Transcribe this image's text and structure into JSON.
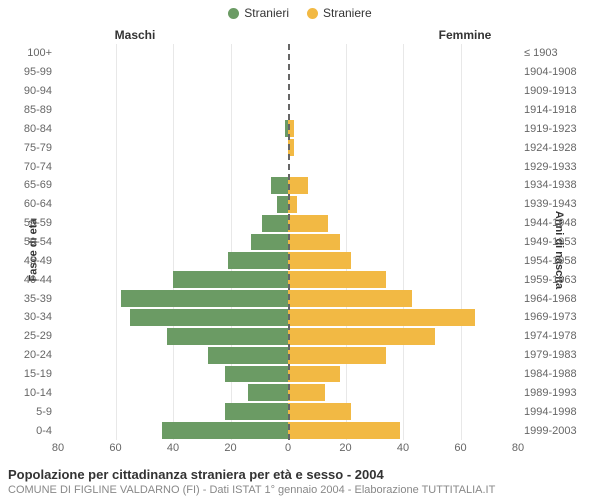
{
  "legend": {
    "male": "Stranieri",
    "female": "Straniere"
  },
  "headers": {
    "left": "Maschi",
    "right": "Femmine"
  },
  "axis": {
    "left_title": "Fasce di età",
    "right_title": "Anni di nascita"
  },
  "colors": {
    "male": "#6b9b64",
    "female": "#f2b944",
    "grid": "#e8e8e8",
    "center": "#666666",
    "text": "#666666",
    "bg": "#ffffff"
  },
  "chart": {
    "type": "population-pyramid",
    "xmax": 80,
    "xtick_step": 20,
    "xticks_left": [
      80,
      60,
      40,
      20,
      0
    ],
    "xticks_right": [
      0,
      20,
      40,
      60,
      80
    ],
    "bar_height_ratio": 0.9,
    "rows": [
      {
        "age": "100+",
        "birth": "≤ 1903",
        "m": 0,
        "f": 0
      },
      {
        "age": "95-99",
        "birth": "1904-1908",
        "m": 0,
        "f": 0
      },
      {
        "age": "90-94",
        "birth": "1909-1913",
        "m": 0,
        "f": 0
      },
      {
        "age": "85-89",
        "birth": "1914-1918",
        "m": 0,
        "f": 0
      },
      {
        "age": "80-84",
        "birth": "1919-1923",
        "m": 1,
        "f": 2
      },
      {
        "age": "75-79",
        "birth": "1924-1928",
        "m": 0,
        "f": 2
      },
      {
        "age": "70-74",
        "birth": "1929-1933",
        "m": 0,
        "f": 0
      },
      {
        "age": "65-69",
        "birth": "1934-1938",
        "m": 6,
        "f": 7
      },
      {
        "age": "60-64",
        "birth": "1939-1943",
        "m": 4,
        "f": 3
      },
      {
        "age": "55-59",
        "birth": "1944-1948",
        "m": 9,
        "f": 14
      },
      {
        "age": "50-54",
        "birth": "1949-1953",
        "m": 13,
        "f": 18
      },
      {
        "age": "45-49",
        "birth": "1954-1958",
        "m": 21,
        "f": 22
      },
      {
        "age": "40-44",
        "birth": "1959-1963",
        "m": 40,
        "f": 34
      },
      {
        "age": "35-39",
        "birth": "1964-1968",
        "m": 58,
        "f": 43
      },
      {
        "age": "30-34",
        "birth": "1969-1973",
        "m": 55,
        "f": 65
      },
      {
        "age": "25-29",
        "birth": "1974-1978",
        "m": 42,
        "f": 51
      },
      {
        "age": "20-24",
        "birth": "1979-1983",
        "m": 28,
        "f": 34
      },
      {
        "age": "15-19",
        "birth": "1984-1988",
        "m": 22,
        "f": 18
      },
      {
        "age": "10-14",
        "birth": "1989-1993",
        "m": 14,
        "f": 13
      },
      {
        "age": "5-9",
        "birth": "1994-1998",
        "m": 22,
        "f": 22
      },
      {
        "age": "0-4",
        "birth": "1999-2003",
        "m": 44,
        "f": 39
      }
    ]
  },
  "footer": {
    "title": "Popolazione per cittadinanza straniera per età e sesso - 2004",
    "subtitle": "COMUNE DI FIGLINE VALDARNO (FI) - Dati ISTAT 1° gennaio 2004 - Elaborazione TUTTITALIA.IT"
  }
}
